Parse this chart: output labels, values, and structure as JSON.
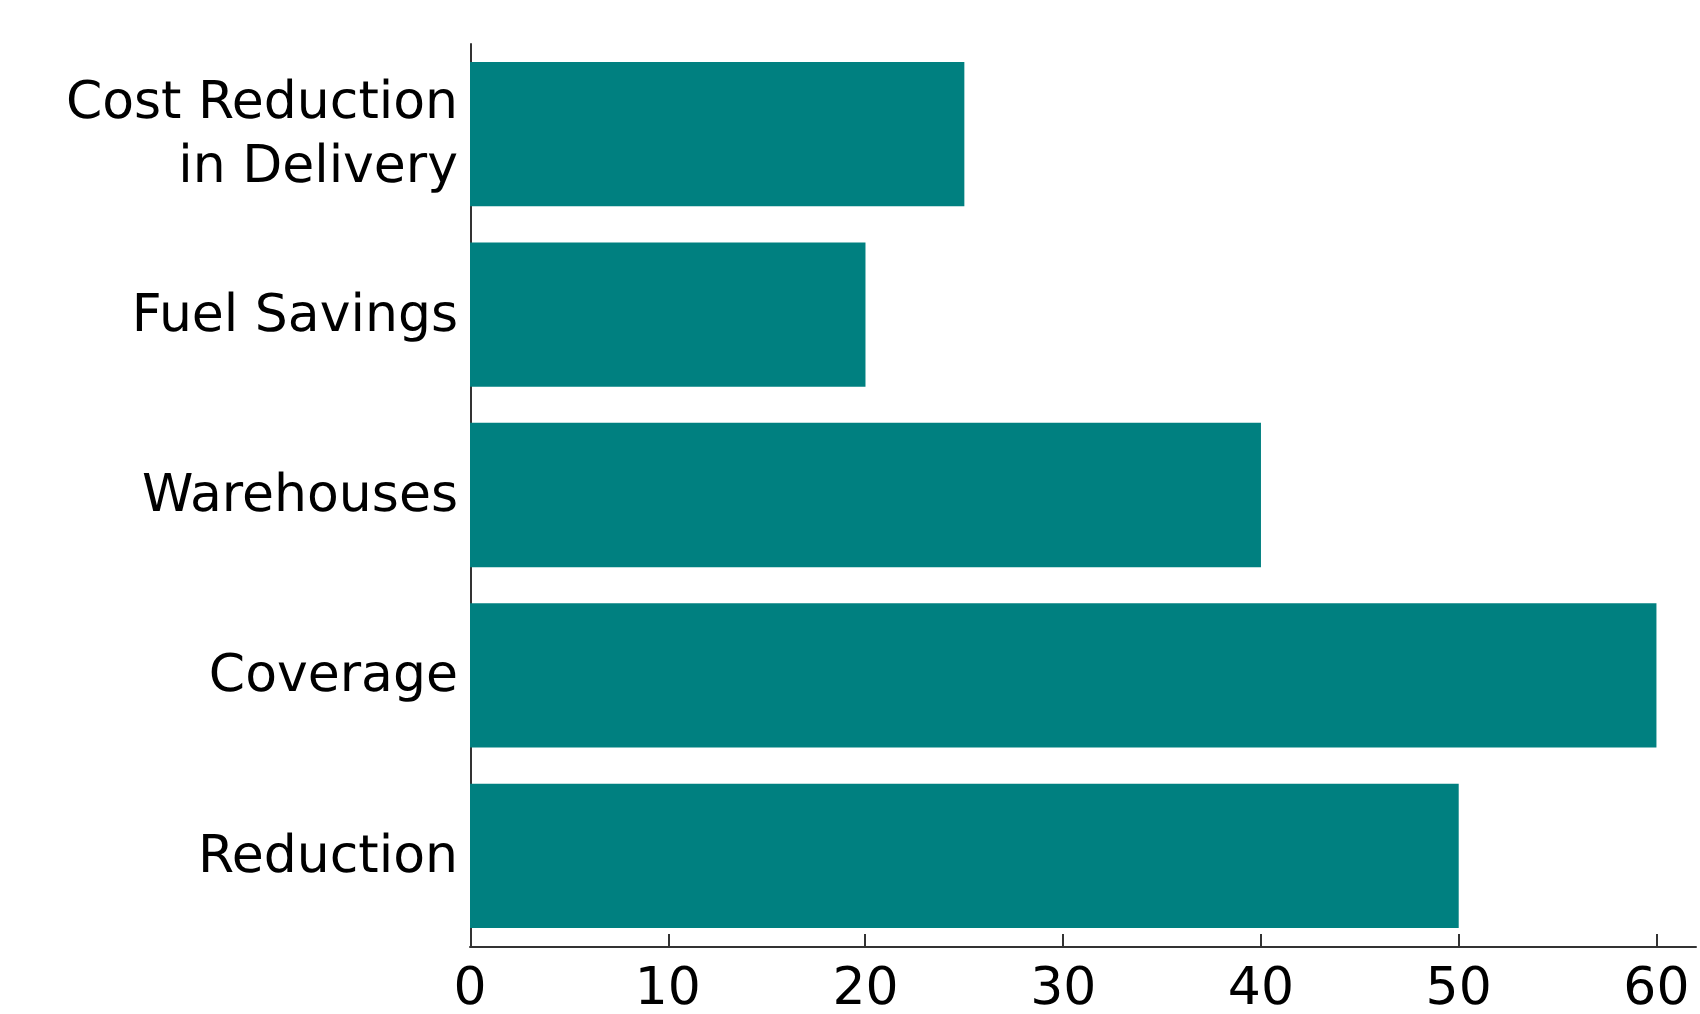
{
  "chart_data": {
    "type": "bar",
    "orientation": "horizontal",
    "categories": [
      "Cost Reduction\nin Delivery",
      "Fuel Savings",
      "Warehouses",
      "Coverage",
      "Reduction"
    ],
    "values": [
      25,
      20,
      40,
      60,
      50
    ],
    "color": "#008080",
    "xlim": [
      0,
      62
    ],
    "xticks": [
      0,
      10,
      20,
      30,
      40,
      50,
      60
    ]
  }
}
